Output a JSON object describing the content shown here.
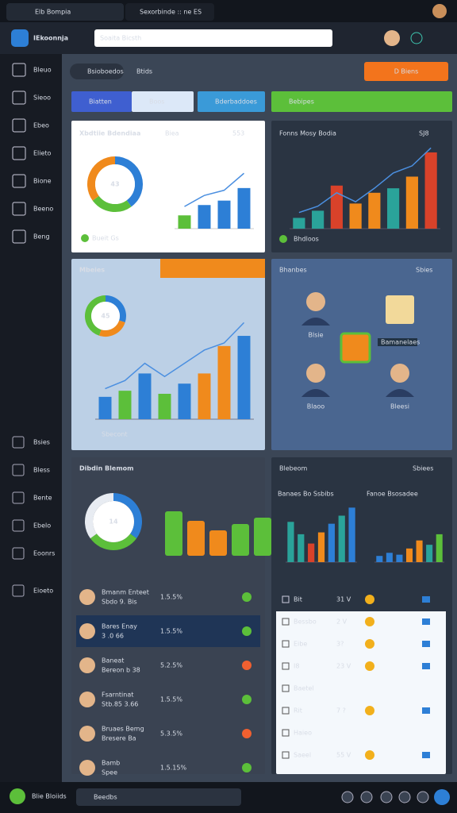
{
  "tabs": [
    "Elb Bompia",
    "Sexorbinde :: ne ES"
  ],
  "header": {
    "logo": "IEkoonnja",
    "search": "Soaita Bicsth"
  },
  "sidebar": {
    "top": [
      "Bleuo",
      "Sieoo",
      "Ebeo",
      "Elieto",
      "Bione",
      "Beeno",
      "Beng"
    ],
    "bottom": [
      "Bsies",
      "Bless",
      "Bente",
      "Ebelo",
      "Eoonrs",
      "Eioeto"
    ]
  },
  "toolbar": {
    "search": "Bsioboedos",
    "filter": "Btids",
    "button": "D Biens"
  },
  "filters": [
    "Biatten",
    "Boos",
    "Bderbaddoes",
    "Bebipes"
  ],
  "cards": [
    {
      "title": "Xbdtiie Bdendiaa",
      "subtitle": "Biea",
      "badge": "553",
      "footer": "Bueit Gs",
      "donut": {
        "center": "43",
        "values": [
          40,
          25,
          35
        ],
        "colors": [
          "#2d7fd6",
          "#5cbf3a",
          "#f08a1c"
        ]
      },
      "bars": {
        "ylim": [
          0,
          100
        ],
        "values": [
          18,
          32,
          38,
          55
        ],
        "line": [
          30,
          45,
          52,
          75
        ],
        "colors": [
          "#5cbf3a",
          "#2d7fd6",
          "#2d7fd6",
          "#2d7fd6"
        ]
      }
    },
    {
      "title": "Fonns Mosy Bodia",
      "badge": "SJ8",
      "footer": "Bhdloos",
      "bars": {
        "ylim": [
          0,
          100
        ],
        "values": [
          12,
          20,
          48,
          28,
          40,
          45,
          58,
          85
        ],
        "line": [
          18,
          25,
          40,
          30,
          45,
          62,
          70,
          90
        ],
        "colors": [
          "#2aa39a",
          "#2aa39a",
          "#d9422a",
          "#f08a1c",
          "#f08a1c",
          "#2aa39a",
          "#f08a1c",
          "#d9422a"
        ]
      }
    },
    {
      "title": "Mbeies",
      "footer": "Sbecont",
      "donut": {
        "center": "45",
        "values": [
          30,
          25,
          45
        ],
        "colors": [
          "#2d7fd6",
          "#f08a1c",
          "#5cbf3a"
        ]
      },
      "bars": {
        "ylim": [
          0,
          100
        ],
        "values": [
          22,
          28,
          45,
          25,
          35,
          45,
          72,
          82
        ],
        "line": [
          30,
          38,
          55,
          42,
          55,
          68,
          75,
          95
        ],
        "colors": [
          "#2d7fd6",
          "#5cbf3a",
          "#2d7fd6",
          "#5cbf3a",
          "#2d7fd6",
          "#f08a1c",
          "#f08a1c",
          "#2d7fd6"
        ]
      }
    },
    {
      "title": "Bhanbes",
      "menu": "Sbies",
      "people": [
        "Blsie",
        "Blaoo",
        "Bleesi"
      ],
      "tag": "Bamanelaes"
    },
    {
      "title": "Dibdin Blemom",
      "donut": {
        "center": "14",
        "values": [
          35,
          30,
          35
        ],
        "colors": [
          "#2d7fd6",
          "#5cbf3a",
          "#e8ecf2"
        ]
      },
      "stacks": {
        "ylim": [
          0,
          100
        ],
        "values": [
          70,
          55,
          40,
          50,
          60
        ],
        "colors": [
          "#5cbf3a",
          "#f08a1c",
          "#f08a1c",
          "#5cbf3a",
          "#5cbf3a"
        ]
      },
      "rows": [
        {
          "name": "Bmanm Enteet",
          "sub": "Sbdo 9. Bis",
          "value": "1.5.5%",
          "color": "#5cbf3a"
        },
        {
          "name": "Bares Enay",
          "sub": "3 .0 66",
          "value": "1.5.5%",
          "color": "#5cbf3a"
        },
        {
          "name": "Baneat",
          "sub": "Bereon b 38",
          "value": "5.2.5%",
          "color": "#f06030"
        },
        {
          "name": "Fsarntinat",
          "sub": "Stb.85 3.66",
          "value": "1.5.5%",
          "color": "#5cbf3a"
        },
        {
          "name": "Bruaes Bemg",
          "sub": "Bresere Ba",
          "value": "5.3.5%",
          "color": "#f06030"
        },
        {
          "name": "Bamb",
          "sub": "Spee",
          "value": "1.5.15%",
          "color": "#5cbf3a"
        }
      ]
    },
    {
      "title": "Blebeom",
      "menu": "Sbiees",
      "sub1": "Banaes Bo Ssbibs",
      "sub2": "Fanoe Bsosadee",
      "bars1": {
        "ylim": [
          0,
          100
        ],
        "values": [
          65,
          45,
          30,
          48,
          62,
          75,
          88
        ],
        "colors": [
          "#2aa39a",
          "#2aa39a",
          "#d9422a",
          "#f08a1c",
          "#2d7fd6",
          "#2aa39a",
          "#2d7fd6"
        ]
      },
      "bars2": {
        "ylim": [
          0,
          100
        ],
        "values": [
          10,
          15,
          12,
          22,
          35,
          28,
          45
        ],
        "colors": [
          "#2d7fd6",
          "#2d7fd6",
          "#2d7fd6",
          "#f08a1c",
          "#f08a1c",
          "#2aa39a",
          "#5cbf3a"
        ]
      },
      "rows": [
        {
          "label": "Bit",
          "val": "31 V"
        },
        {
          "label": "Bessbo",
          "val": "2 V"
        },
        {
          "label": "Eibe",
          "val": "3?"
        },
        {
          "label": "I8",
          "val": "23 V"
        },
        {
          "label": "Baetel",
          "val": ""
        },
        {
          "label": "Rit",
          "val": "7 ?"
        },
        {
          "label": "Haieo",
          "val": ""
        },
        {
          "label": "Saeel",
          "val": "55 V"
        }
      ]
    }
  ],
  "footer": {
    "user": "Blie Bloiids",
    "search": "Beedbs"
  }
}
